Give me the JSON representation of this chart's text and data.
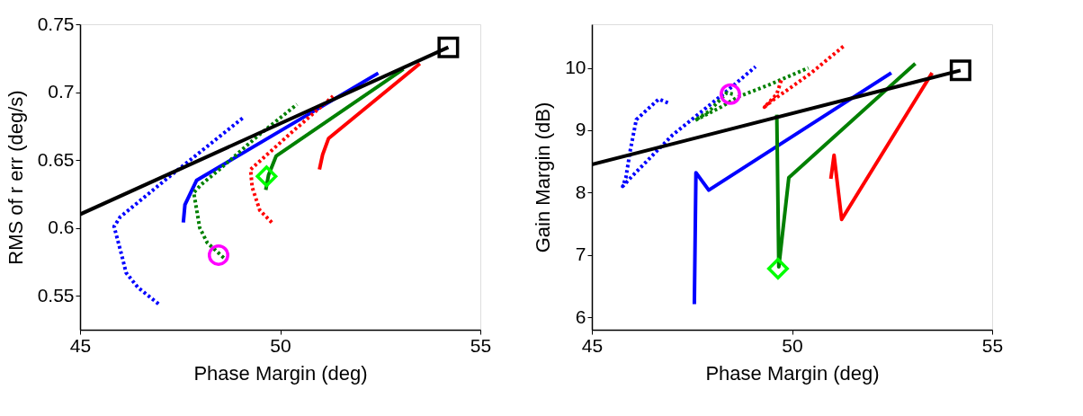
{
  "chart_data": [
    {
      "type": "line",
      "xlabel": "Phase Margin (deg)",
      "ylabel": "RMS of r err (deg/s)",
      "xlim": [
        45,
        55
      ],
      "xticks": [
        45,
        50,
        55
      ],
      "ylim": [
        0.525,
        0.75
      ],
      "yticks": [
        0.55,
        0.6,
        0.65,
        0.7,
        0.75
      ],
      "grid": false,
      "legend": false,
      "series": [
        {
          "color": "#0000ff",
          "line_style": "dotted",
          "x": [
            46.96,
            46.45,
            46.15,
            46.04,
            45.85,
            46.0,
            47.2,
            49.11
          ],
          "values": [
            0.544,
            0.556,
            0.567,
            0.58,
            0.601,
            0.608,
            0.637,
            0.682
          ]
        },
        {
          "color": "#0000ff",
          "line_style": "solid",
          "x": [
            47.58,
            47.62,
            47.91,
            52.45
          ],
          "values": [
            0.604,
            0.617,
            0.635,
            0.714
          ]
        },
        {
          "color": "#008000",
          "line_style": "dotted",
          "x": [
            48.59,
            48.18,
            47.99,
            47.84,
            48.03,
            48.48,
            49.45,
            50.42
          ],
          "values": [
            0.578,
            0.589,
            0.6,
            0.626,
            0.632,
            0.643,
            0.668,
            0.691
          ]
        },
        {
          "color": "#008000",
          "line_style": "solid",
          "x": [
            49.64,
            49.71,
            49.9,
            53.08
          ],
          "values": [
            0.628,
            0.639,
            0.653,
            0.717
          ]
        },
        {
          "color": "#ff0000",
          "line_style": "dotted",
          "x": [
            49.79,
            49.49,
            49.3,
            49.26,
            49.67,
            50.35,
            51.32
          ],
          "values": [
            0.604,
            0.613,
            0.63,
            0.643,
            0.654,
            0.672,
            0.697
          ]
        },
        {
          "color": "#ff0000",
          "line_style": "solid",
          "x": [
            50.98,
            51.06,
            51.21,
            53.49
          ],
          "values": [
            0.643,
            0.654,
            0.666,
            0.721
          ]
        },
        {
          "color": "#000000",
          "line_style": "solid",
          "x": [
            45.0,
            54.2
          ],
          "values": [
            0.61,
            0.733
          ]
        },
        {
          "type": "scatter",
          "marker": "square",
          "color": "#000000",
          "x": [
            54.2
          ],
          "values": [
            0.733
          ]
        },
        {
          "type": "scatter",
          "marker": "circle",
          "color": "#ff00ff",
          "x": [
            48.46
          ],
          "values": [
            0.58
          ]
        },
        {
          "type": "scatter",
          "marker": "diamond",
          "color": "#00ff00",
          "x": [
            49.66
          ],
          "values": [
            0.638
          ]
        }
      ]
    },
    {
      "type": "line",
      "xlabel": "Phase Margin (deg)",
      "ylabel": "Gain Margin (dB)",
      "xlim": [
        45,
        55
      ],
      "xticks": [
        45,
        50,
        55
      ],
      "ylim": [
        5.8,
        10.7
      ],
      "yticks": [
        6,
        7,
        8,
        9,
        10
      ],
      "grid": false,
      "legend": false,
      "series": [
        {
          "color": "#0000ff",
          "line_style": "dotted",
          "x": [
            46.9,
            46.67,
            46.11,
            45.96,
            45.85,
            45.77,
            46.03,
            47.01,
            48.3,
            49.09
          ],
          "values": [
            9.44,
            9.5,
            9.17,
            8.68,
            8.24,
            8.1,
            8.28,
            8.92,
            9.59,
            10.02
          ]
        },
        {
          "color": "#0000ff",
          "line_style": "solid",
          "x": [
            47.56,
            47.6,
            47.92,
            52.48
          ],
          "values": [
            6.21,
            8.32,
            8.04,
            9.92
          ]
        },
        {
          "color": "#008000",
          "line_style": "dotted",
          "x": [
            48.52,
            48.37,
            47.92,
            47.58,
            48.22,
            48.67,
            49.43,
            50.41
          ],
          "values": [
            9.58,
            9.6,
            9.3,
            9.16,
            9.37,
            9.54,
            9.73,
            10.0
          ]
        },
        {
          "color": "#008000",
          "line_style": "solid",
          "x": [
            49.62,
            49.67,
            49.92,
            53.08
          ],
          "values": [
            9.25,
            6.81,
            8.24,
            10.07
          ]
        },
        {
          "color": "#ff0000",
          "line_style": "dotted",
          "x": [
            49.73,
            49.62,
            49.31,
            49.54,
            50.48,
            51.31
          ],
          "values": [
            9.8,
            9.58,
            9.37,
            9.49,
            9.92,
            10.36
          ]
        },
        {
          "color": "#ff0000",
          "line_style": "solid",
          "x": [
            50.97,
            51.05,
            51.24,
            53.5
          ],
          "values": [
            8.22,
            8.6,
            7.57,
            9.92
          ]
        },
        {
          "color": "#000000",
          "line_style": "solid",
          "x": [
            45.0,
            54.21
          ],
          "values": [
            8.45,
            9.96
          ]
        },
        {
          "type": "scatter",
          "marker": "square",
          "color": "#000000",
          "x": [
            54.21
          ],
          "values": [
            9.96
          ]
        },
        {
          "type": "scatter",
          "marker": "circle",
          "color": "#ff00ff",
          "x": [
            48.46
          ],
          "values": [
            9.58
          ]
        },
        {
          "type": "scatter",
          "marker": "diamond",
          "color": "#00ff00",
          "x": [
            49.65
          ],
          "values": [
            6.78
          ]
        }
      ]
    }
  ]
}
